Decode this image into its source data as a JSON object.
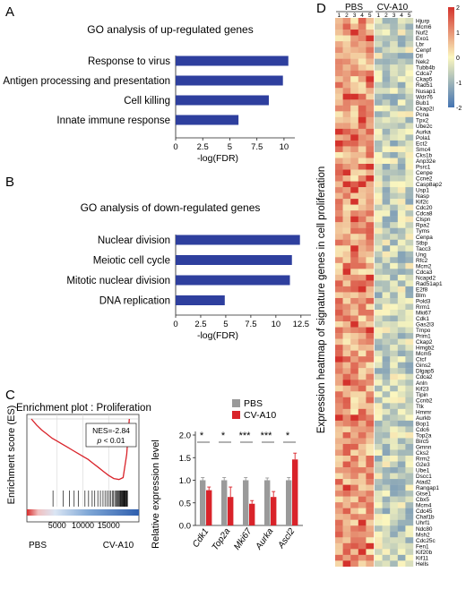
{
  "panels": {
    "A": {
      "letter": "A"
    },
    "B": {
      "letter": "B"
    },
    "C": {
      "letter": "C"
    },
    "D": {
      "letter": "D"
    }
  },
  "chart_data": [
    {
      "panel": "A",
      "type": "bar",
      "orientation": "horizontal",
      "title": "GO analysis of up-regulated genes",
      "categories": [
        "Response to virus",
        "Antigen processing and presentation",
        "Cell killing",
        "Innate immune response"
      ],
      "values": [
        10.4,
        9.9,
        8.6,
        5.8
      ],
      "xlabel": "-log(FDR)",
      "xlim": [
        0,
        11
      ],
      "xticks": [
        "0",
        "2.5",
        "5",
        "7.5",
        "10"
      ],
      "bar_color": "#2e3f9e"
    },
    {
      "panel": "B",
      "type": "bar",
      "orientation": "horizontal",
      "title": "GO analysis of down-regulated genes",
      "categories": [
        "Nuclear division",
        "Meiotic cell cycle",
        "Mitotic nuclear division",
        "DNA replication"
      ],
      "values": [
        12.4,
        11.6,
        11.4,
        4.9
      ],
      "xlabel": "-log(FDR)",
      "xlim": [
        0,
        13.5
      ],
      "xticks": [
        "0",
        "2.5",
        "5",
        "7.5",
        "10",
        "12.5"
      ],
      "bar_color": "#2e3f9e"
    },
    {
      "panel": "C-left",
      "type": "line",
      "title": "Enrichment plot : Proliferation",
      "ylabel": "Enrichment score (ES)",
      "xticks": [
        "5000",
        "10000",
        "15000"
      ],
      "xlim": [
        0,
        20000
      ],
      "x_start_label": "PBS",
      "x_end_label": "CV-A10",
      "annotation_nes": "NES=-2.84",
      "annotation_p_italic": "p",
      "annotation_p_rest": " < 0.01",
      "x": [
        0,
        1000,
        2000,
        3000,
        4000,
        5000,
        6000,
        7000,
        8000,
        9000,
        10000,
        11000,
        12000,
        13000,
        14000,
        15000,
        16000,
        17000,
        17800,
        18500,
        19000
      ],
      "y": [
        0,
        -0.06,
        -0.11,
        -0.15,
        -0.19,
        -0.22,
        -0.25,
        -0.28,
        -0.31,
        -0.34,
        -0.37,
        -0.4,
        -0.44,
        -0.48,
        -0.52,
        -0.56,
        -0.59,
        -0.6,
        -0.58,
        -0.35,
        0
      ],
      "hit_positions": [
        4200,
        6200,
        7400,
        8300,
        9100,
        10400,
        11100,
        11800,
        12300,
        12900,
        13400,
        13900,
        14300,
        14700,
        15100,
        15400,
        15700,
        15950,
        16200,
        16400,
        16600,
        16800,
        16950,
        17100,
        17250,
        17380,
        17500,
        17620,
        17740,
        17850,
        17950,
        18050,
        18150,
        18250,
        18350,
        18450,
        18550,
        18650
      ],
      "line_color": "#d9232a"
    },
    {
      "panel": "C-right",
      "type": "bar",
      "ylabel": "Relative expression level",
      "ylim": [
        0,
        2.0
      ],
      "yticks": [
        "0.0",
        "0.5",
        "1.0",
        "1.5",
        "2.0"
      ],
      "categories": [
        "Cdk1",
        "Top2a",
        "Mki67",
        "Aurka",
        "Ascl2"
      ],
      "series": [
        {
          "name": "PBS",
          "values": [
            1.0,
            1.0,
            1.0,
            1.0,
            1.0
          ],
          "errors": [
            0.06,
            0.06,
            0.06,
            0.05,
            0.06
          ],
          "color": "#9a9a9a"
        },
        {
          "name": "CV-A10",
          "values": [
            0.78,
            0.63,
            0.48,
            0.63,
            1.46
          ],
          "errors": [
            0.07,
            0.22,
            0.07,
            0.12,
            0.14
          ],
          "color": "#d9232a"
        }
      ],
      "significance": [
        "*",
        "*",
        "***",
        "***",
        "*"
      ]
    },
    {
      "panel": "D",
      "type": "heatmap",
      "ylabel": "Expression heatmap of signature genes in cell proliferation",
      "groups": [
        {
          "name": "PBS",
          "columns": [
            "1",
            "2",
            "3",
            "4",
            "5"
          ]
        },
        {
          "name": "CV-A10",
          "columns": [
            "1",
            "2",
            "3",
            "4",
            "5"
          ]
        }
      ],
      "genes": [
        "Hjurp",
        "Mcm6",
        "Nuf2",
        "Exo1",
        "Lbr",
        "Cenpf",
        "Dtl",
        "Nek2",
        "Tubb4b",
        "Cdca7",
        "Ckap5",
        "Rad51",
        "Nusap1",
        "Wdr76",
        "Bub1",
        "Ckap2l",
        "Pcna",
        "Tpx2",
        "Ube2c",
        "Aurka",
        "Pola1",
        "Ect2",
        "Smc4",
        "Cks1b",
        "Anp32e",
        "Psrc1",
        "Cenpe",
        "Ccne2",
        "Casp8ap2",
        "Usp1",
        "Nasp",
        "Kif2c",
        "Cdc20",
        "Cdca8",
        "Clspn",
        "Rpa2",
        "Tyms",
        "Cenpa",
        "Stbp",
        "Tacc3",
        "Ung",
        "Rfc2",
        "Mcm2",
        "Cdca3",
        "Ncapd2",
        "Rad51ap1",
        "E2f8",
        "Blm",
        "Pold3",
        "Rrm1",
        "Mki67",
        "Cdk1",
        "Gas2l3",
        "Tmpo",
        "Prim1",
        "Ckap2",
        "Hmgb2",
        "Mcm5",
        "Ctcf",
        "Gins2",
        "Dlgap5",
        "Cdca2",
        "Anln",
        "Kif23",
        "Tipin",
        "Ccnb2",
        "Ttk",
        "Hmmr",
        "Aurkb",
        "Bop1",
        "Cdc6",
        "Top2a",
        "Birc5",
        "Gmnn",
        "Cks2",
        "Rrm2",
        "G2e3",
        "Ube1",
        "Dscc1",
        "Atad2",
        "Rangap1",
        "Gtse1",
        "Cbx5",
        "Mcm4",
        "Cdc45",
        "Chaf1b",
        "Uhrf1",
        "Ndc80",
        "Msh2",
        "Cdc25c",
        "Fen1",
        "Kif20b",
        "Kif11",
        "Hells"
      ],
      "colorbar_ticks": [
        "2",
        "1",
        "0",
        "-1",
        "-2"
      ],
      "colorbar_max": 2,
      "colorbar_min": -2,
      "color_high": "#d4322c",
      "color_mid": "#fbf7bf",
      "color_low": "#4474b2"
    }
  ]
}
